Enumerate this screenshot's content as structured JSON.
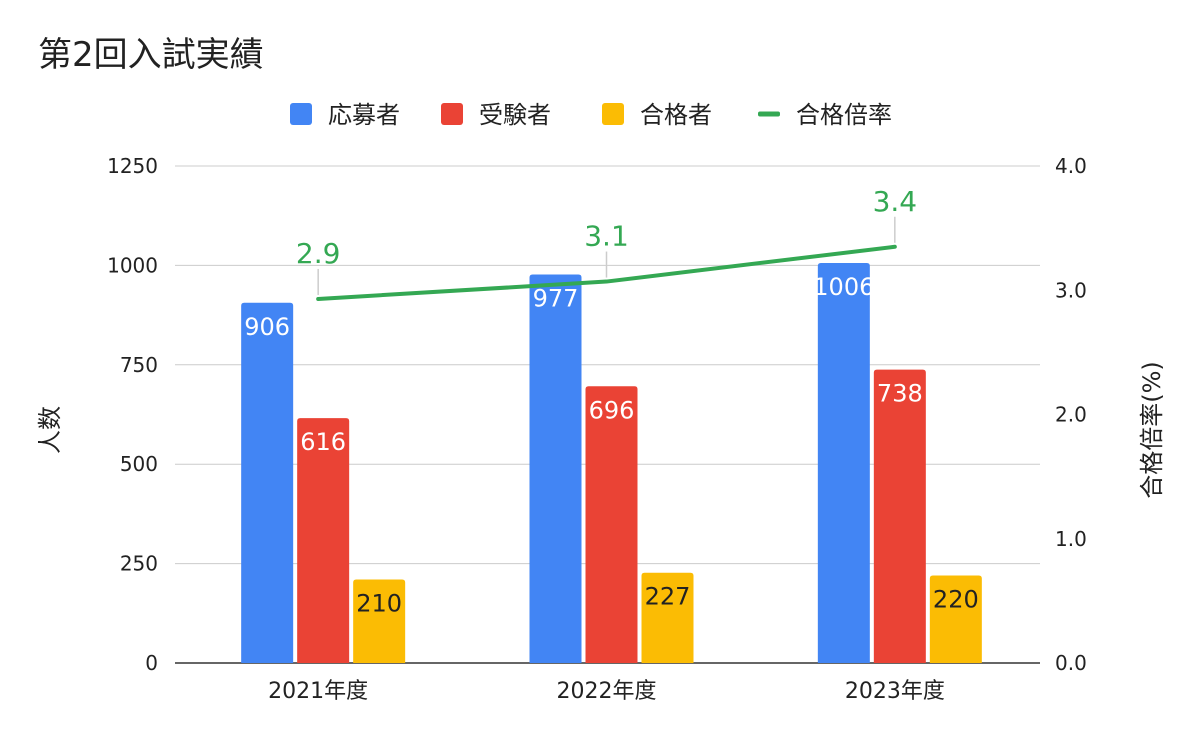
{
  "chart_data": {
    "type": "bar",
    "title": "第2回入試実績",
    "categories": [
      "2021年度",
      "2022年度",
      "2023年度"
    ],
    "series": [
      {
        "name": "応募者",
        "kind": "bar",
        "axis": "left",
        "color": "#4285F4",
        "label_color": "#ffffff",
        "values": [
          906,
          977,
          1006
        ]
      },
      {
        "name": "受験者",
        "kind": "bar",
        "axis": "left",
        "color": "#EA4335",
        "label_color": "#ffffff",
        "values": [
          616,
          696,
          738
        ]
      },
      {
        "name": "合格者",
        "kind": "bar",
        "axis": "left",
        "color": "#FBBC04",
        "label_color": "#222222",
        "values": [
          210,
          227,
          220
        ]
      },
      {
        "name": "合格倍率",
        "kind": "line",
        "axis": "right",
        "color": "#34A853",
        "label_color": "#34A853",
        "values": [
          2.93,
          3.07,
          3.35
        ],
        "labels": [
          "2.9",
          "3.1",
          "3.4"
        ]
      }
    ],
    "ylabel_left": "人数",
    "ylabel_right": "合格倍率(%)",
    "ylim_left": [
      0,
      1250
    ],
    "yticks_left": [
      "0",
      "250",
      "500",
      "750",
      "1000",
      "1250"
    ],
    "ylim_right": [
      0,
      4
    ],
    "yticks_right": [
      "0.0",
      "1.0",
      "2.0",
      "3.0",
      "4.0"
    ],
    "grid": true,
    "legend_position": "top"
  }
}
